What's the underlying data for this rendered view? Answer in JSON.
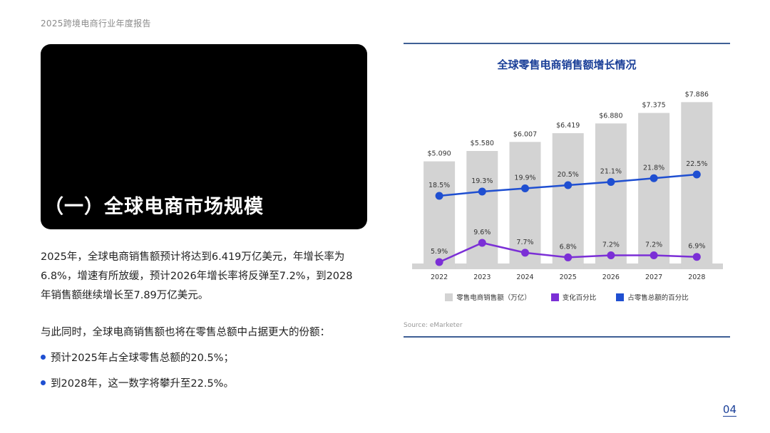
{
  "header": {
    "label": "2025跨境电商行业年度报告"
  },
  "hero": {
    "title": "（一）全球电商市场规模"
  },
  "body": {
    "paragraph1": "2025年，全球电商销售额预计将达到6.419万亿美元，年增长率为6.8%，增速有所放缓，预计2026年增长率将反弹至7.2%，到2028年销售额继续增长至7.89万亿美元。",
    "paragraph2": "与此同时，全球电商销售额也将在零售总额中占据更大的份额：",
    "bullets": [
      "预计2025年占全球零售总额的20.5%；",
      "到2028年，这一数字将攀升至22.5%。"
    ]
  },
  "chart": {
    "title": "全球零售电商销售额增长情况",
    "source": "Source:  eMarketer"
  },
  "chart_data": {
    "type": "bar",
    "title": "全球零售电商销售额增长情况",
    "categories": [
      "2022",
      "2023",
      "2024",
      "2025",
      "2026",
      "2027",
      "2028"
    ],
    "series": [
      {
        "name": "零售电商销售额（万亿）",
        "kind": "bar",
        "color": "#d3d3d3",
        "values": [
          5.09,
          5.58,
          6.007,
          6.419,
          6.88,
          7.375,
          7.886
        ],
        "labels": [
          "$5.090",
          "$5.580",
          "$6.007",
          "$6.419",
          "$6.880",
          "$7.375",
          "$7.886"
        ]
      },
      {
        "name": "变化百分比",
        "kind": "line",
        "color": "#7b2fd6",
        "values": [
          5.9,
          9.6,
          7.7,
          6.8,
          7.2,
          7.2,
          6.9
        ],
        "labels": [
          "5.9%",
          "9.6%",
          "7.7%",
          "6.8%",
          "7.2%",
          "7.2%",
          "6.9%"
        ]
      },
      {
        "name": "占零售总额的百分比",
        "kind": "line",
        "color": "#1f4fd1",
        "values": [
          18.5,
          19.3,
          19.9,
          20.5,
          21.1,
          21.8,
          22.5
        ],
        "labels": [
          "18.5%",
          "19.3%",
          "19.9%",
          "20.5%",
          "21.1%",
          "21.8%",
          "22.5%"
        ]
      }
    ],
    "grid": false,
    "legend_position": "bottom"
  },
  "page": {
    "number": "04"
  }
}
